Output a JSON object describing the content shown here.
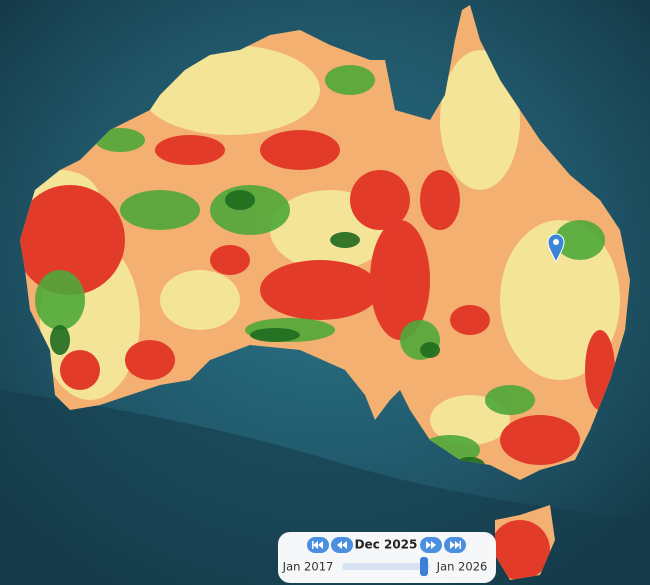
{
  "timeline": {
    "current": "Dec 2025",
    "start": "Jan 2017",
    "end": "Jan 2026"
  }
}
